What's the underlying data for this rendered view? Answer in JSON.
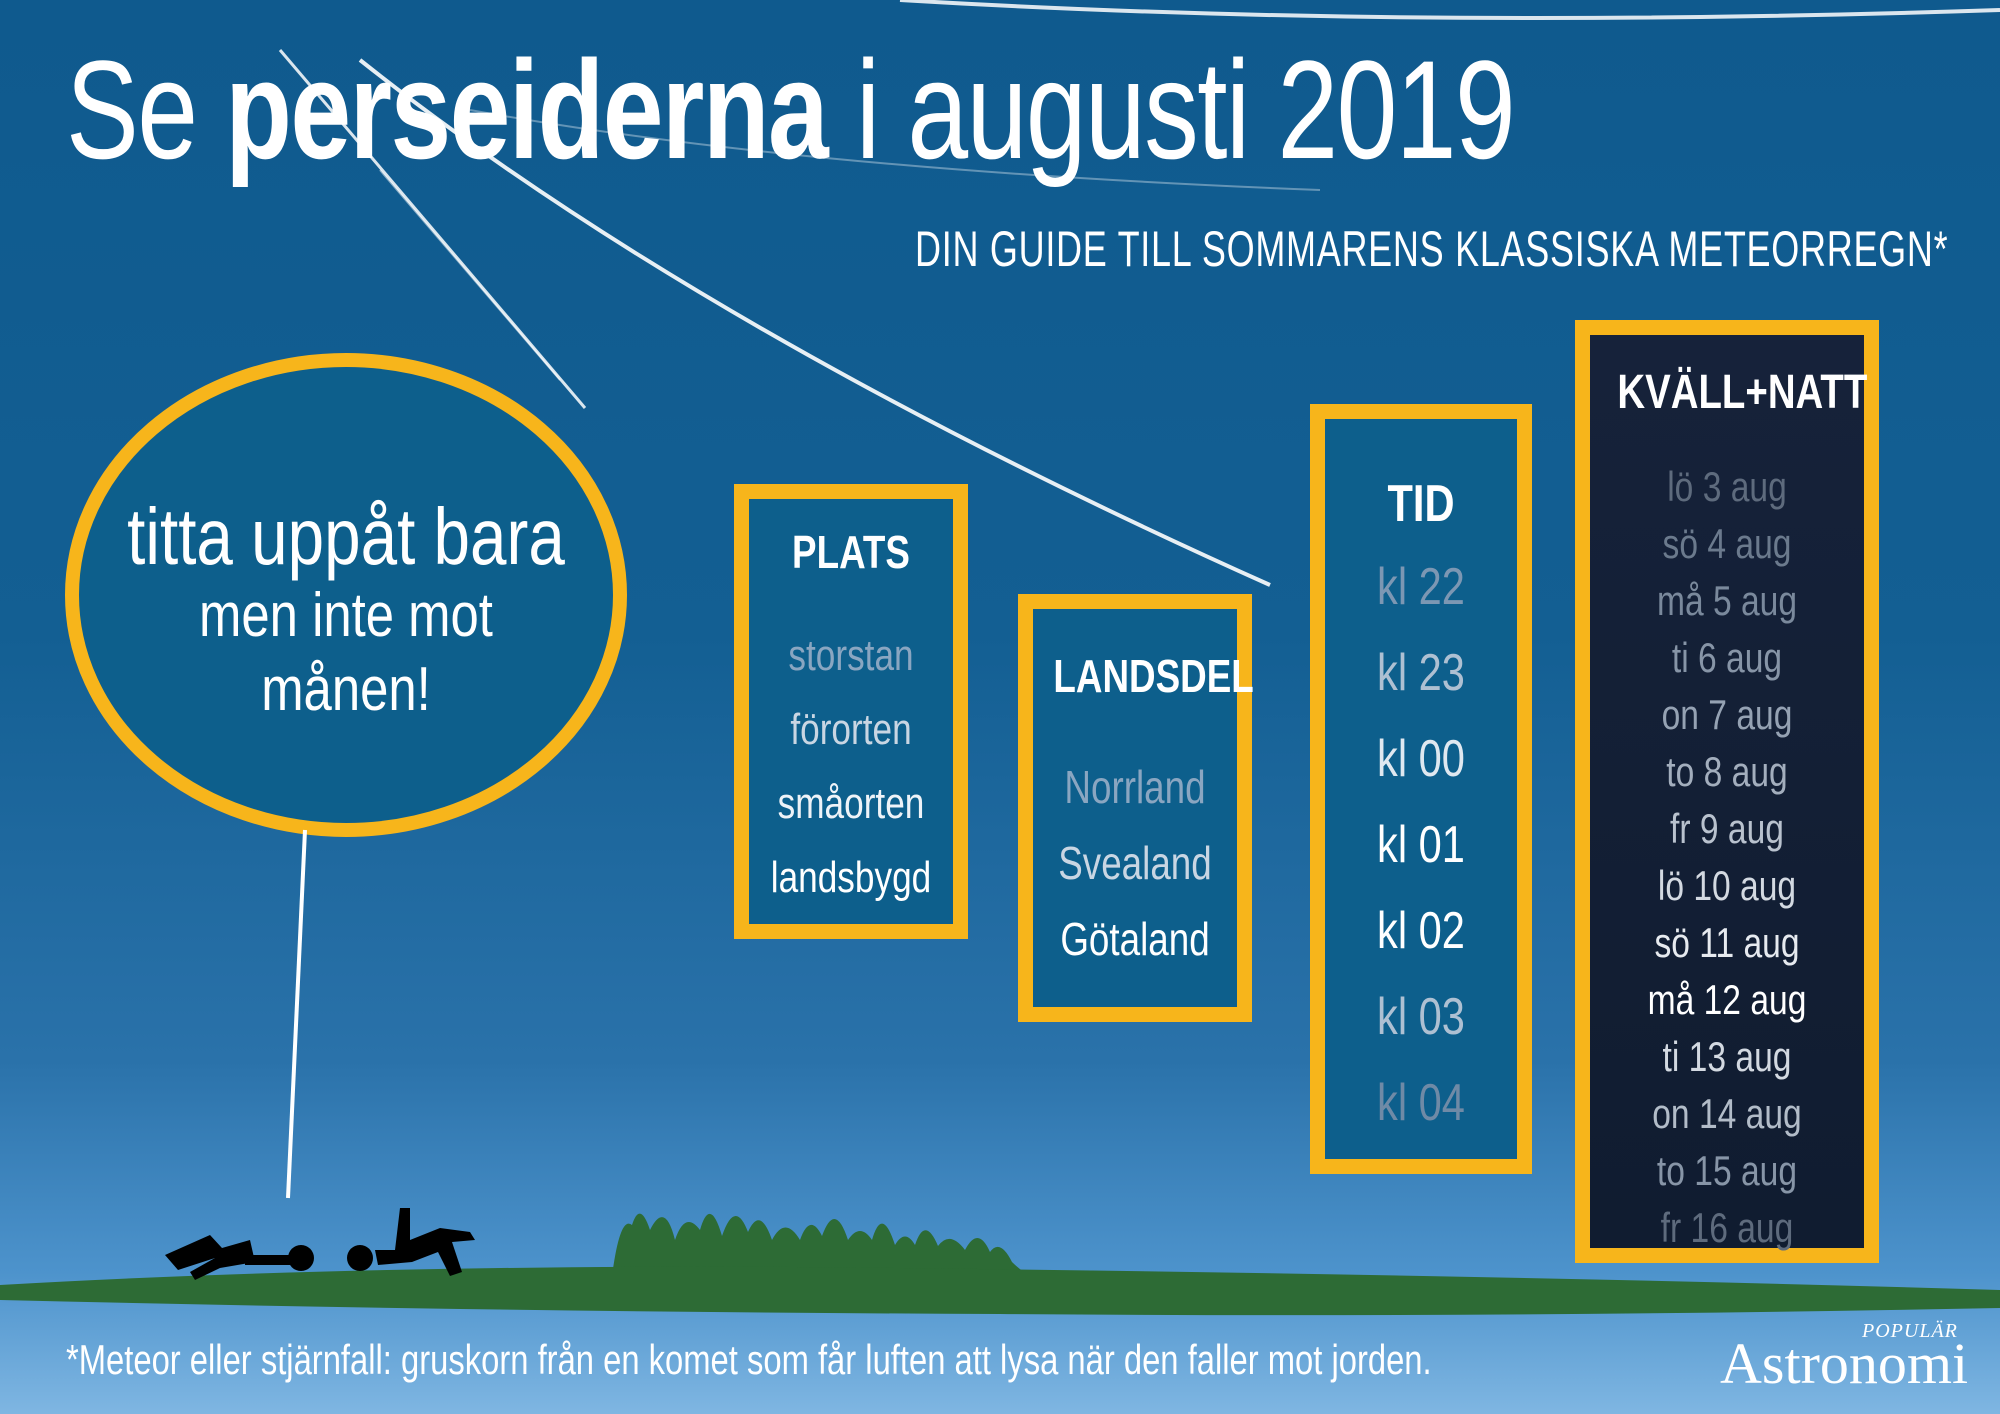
{
  "title": {
    "part1": "Se ",
    "part2": "perseiderna",
    "part3": " i augusti 2019"
  },
  "subtitle": "DIN GUIDE TILL SOMMARENS KLASSISKA METEORREGN*",
  "bubble": {
    "line1": "titta uppåt bara",
    "line2": "men inte mot månen!"
  },
  "plats": {
    "title": "PLATS",
    "items": [
      {
        "label": "storstan",
        "color": "#8aa6c1"
      },
      {
        "label": "förorten",
        "color": "#c9d6e3"
      },
      {
        "label": "småorten",
        "color": "#eef3f8"
      },
      {
        "label": "landsbygd",
        "color": "#ffffff"
      }
    ]
  },
  "landsdel": {
    "title": "LANDSDEL",
    "items": [
      {
        "label": "Norrland",
        "color": "#8aa6c1"
      },
      {
        "label": "Svealand",
        "color": "#c9d6e3"
      },
      {
        "label": "Götaland",
        "color": "#ffffff"
      }
    ]
  },
  "tid": {
    "title": "TID",
    "items": [
      {
        "label": "kl 22",
        "color": "#7c97b3"
      },
      {
        "label": "kl 23",
        "color": "#aec0d2"
      },
      {
        "label": "kl 00",
        "color": "#dfe8f0"
      },
      {
        "label": "kl 01",
        "color": "#ffffff"
      },
      {
        "label": "kl 02",
        "color": "#ffffff"
      },
      {
        "label": "kl 03",
        "color": "#aec0d2"
      },
      {
        "label": "kl 04",
        "color": "#6f8aa6"
      }
    ]
  },
  "kvall": {
    "title": "KVÄLL+NATT",
    "items": [
      {
        "label": "lö 3 aug",
        "color": "#5e6b7d"
      },
      {
        "label": "sö 4 aug",
        "color": "#6b7a8d"
      },
      {
        "label": "må 5 aug",
        "color": "#7a899c"
      },
      {
        "label": "ti 6 aug",
        "color": "#8795a7"
      },
      {
        "label": "on 7 aug",
        "color": "#95a2b3"
      },
      {
        "label": "to 8 aug",
        "color": "#a3aebd"
      },
      {
        "label": "fr 9 aug",
        "color": "#b9c2ce"
      },
      {
        "label": "lö 10 aug",
        "color": "#d3d9e1"
      },
      {
        "label": "sö 11 aug",
        "color": "#e6eaef"
      },
      {
        "label": "må 12 aug",
        "color": "#ffffff"
      },
      {
        "label": "ti 13 aug",
        "color": "#d3d9e1"
      },
      {
        "label": "on 14 aug",
        "color": "#b2bcc8"
      },
      {
        "label": "to 15 aug",
        "color": "#8795a7"
      },
      {
        "label": "fr 16 aug",
        "color": "#5e6b7d"
      }
    ]
  },
  "footnote": "*Meteor eller stjärnfall: gruskorn från en komet som får luften att lysa när den faller mot jorden.",
  "logo": {
    "small": "POPULÄR",
    "big": "Astronomi"
  },
  "colors": {
    "accent": "#f7b51b",
    "box": "#0d5f8c",
    "dark_box": "#121e34",
    "grass": "#2d6b35"
  }
}
